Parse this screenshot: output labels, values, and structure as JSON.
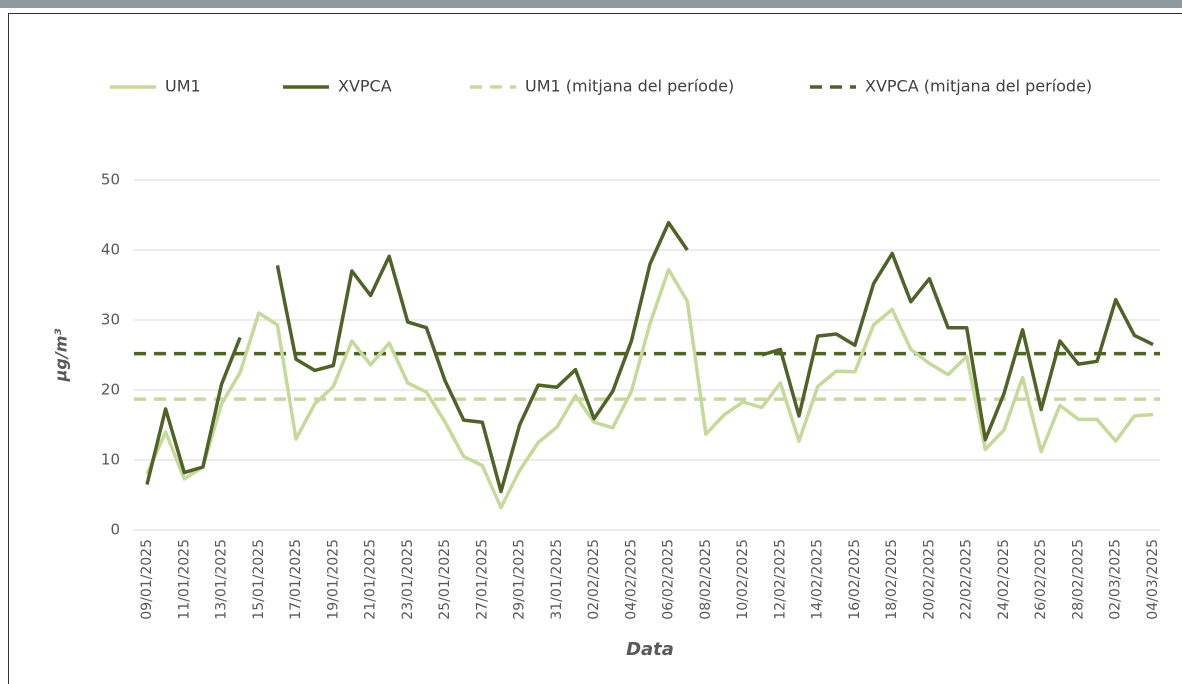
{
  "chart_data": {
    "type": "line",
    "x_label": "Data",
    "y_label": "µg/m³",
    "ylim": [
      0,
      50
    ],
    "yticks": [
      0,
      10,
      20,
      30,
      40,
      50
    ],
    "grid": true,
    "legend": "top",
    "categories": [
      "09/01/2025",
      null,
      "11/01/2025",
      null,
      "13/01/2025",
      null,
      "15/01/2025",
      null,
      "17/01/2025",
      null,
      "19/01/2025",
      null,
      "21/01/2025",
      null,
      "23/01/2025",
      null,
      "25/01/2025",
      null,
      "27/01/2025",
      null,
      "29/01/2025",
      null,
      "31/01/2025",
      null,
      "02/02/2025",
      null,
      "04/02/2025",
      null,
      "06/02/2025",
      null,
      "08/02/2025",
      null,
      "10/02/2025",
      null,
      "12/02/2025",
      null,
      "14/02/2025",
      null,
      "16/02/2025",
      null,
      "18/02/2025",
      null,
      "20/02/2025",
      null,
      "22/02/2025",
      null,
      "24/02/2025",
      null,
      "26/02/2025",
      null,
      "28/02/2025",
      null,
      "02/03/2025",
      null,
      "04/03/2025"
    ],
    "series": [
      {
        "name": "UM1",
        "color": "#c5d99b",
        "values": [
          8,
          14,
          7.3,
          9,
          18,
          22.5,
          31,
          29.3,
          13,
          18,
          20.5,
          27,
          23.6,
          26.7,
          21,
          19.7,
          15.4,
          10.5,
          9.2,
          3.2,
          8.5,
          12.5,
          14.7,
          19.2,
          15.4,
          14.6,
          19.8,
          29.5,
          37.2,
          32.7,
          13.7,
          16.5,
          18.3,
          17.5,
          21,
          12.7,
          20.5,
          22.7,
          22.6,
          29.3,
          31.5,
          25.8,
          23.8,
          22.2,
          24.8,
          11.5,
          14.3,
          21.8,
          11.2,
          17.8,
          15.8,
          15.8,
          12.7,
          16.3,
          16.5
        ]
      },
      {
        "name": "XVPCA",
        "color": "#4f6228",
        "values": [
          6.5,
          17.3,
          8.2,
          9,
          20.8,
          27.5,
          null,
          37.8,
          24.4,
          22.8,
          23.5,
          37,
          33.5,
          39.1,
          29.7,
          28.9,
          21.3,
          15.7,
          15.4,
          5.5,
          15,
          20.7,
          20.4,
          22.9,
          15.9,
          19.8,
          27,
          38,
          43.9,
          40,
          null,
          null,
          null,
          25,
          25.8,
          16.3,
          27.7,
          28,
          26.4,
          35.2,
          39.5,
          32.6,
          35.9,
          28.9,
          28.9,
          12.9,
          19.5,
          28.6,
          17.2,
          27,
          23.7,
          24.1,
          32.9,
          27.8,
          26.5
        ]
      }
    ],
    "reference_lines": [
      {
        "name": "UM1 (mitjana del període)",
        "color": "#c5d99b",
        "value": 18.7,
        "dashed": true
      },
      {
        "name": "XVPCA (mitjana del període)",
        "color": "#4f6228",
        "value": 25.2,
        "dashed": true
      }
    ]
  }
}
